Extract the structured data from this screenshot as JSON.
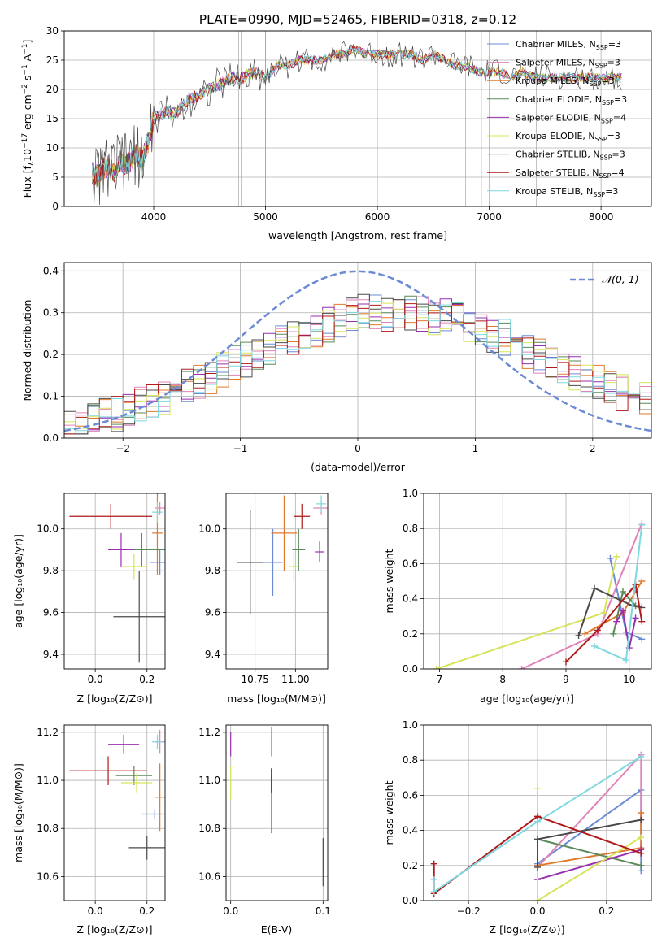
{
  "page": {
    "title": "PLATE=0990, MJD=52465, FIBERID=0318, z=0.12"
  },
  "models": [
    {
      "name": "Chabrier MILES, N$_{SSP}$=3",
      "label_main": "Chabrier MILES, N",
      "label_sub": "SSP",
      "label_end": "=3",
      "color": "#6b8bd6"
    },
    {
      "name": "Salpeter MILES, N$_{SSP}$=3",
      "label_main": "Salpeter MILES, N",
      "label_sub": "SSP",
      "label_end": "=3",
      "color": "#e183b8"
    },
    {
      "name": "Kroupa MILES, N$_{SSP}$=3",
      "label_main": "Kroupa MILES, N",
      "label_sub": "SSP",
      "label_end": "=3",
      "color": "#e0792b"
    },
    {
      "name": "Chabrier ELODIE, N$_{SSP}$=3",
      "label_main": "Chabrier ELODIE, N",
      "label_sub": "SSP",
      "label_end": "=3",
      "color": "#5a8a5a"
    },
    {
      "name": "Salpeter ELODIE, N$_{SSP}$=4",
      "label_main": "Salpeter ELODIE, N",
      "label_sub": "SSP",
      "label_end": "=4",
      "color": "#9a2fb0"
    },
    {
      "name": "Kroupa ELODIE, N$_{SSP}$=3",
      "label_main": "Kroupa ELODIE, N",
      "label_sub": "SSP",
      "label_end": "=3",
      "color": "#d7e45a"
    },
    {
      "name": "Chabrier STELIB, N$_{SSP}$=3",
      "label_main": "Chabrier STELIB, N",
      "label_sub": "SSP",
      "label_end": "=3",
      "color": "#4a4a4a"
    },
    {
      "name": "Salpeter STELIB, N$_{SSP}$=4",
      "label_main": "Salpeter STELIB, N",
      "label_sub": "SSP",
      "label_end": "=4",
      "color": "#b01a1a"
    },
    {
      "name": "Kroupa STELIB, N$_{SSP}$=3",
      "label_main": "Kroupa STELIB, N",
      "label_sub": "SSP",
      "label_end": "=3",
      "color": "#7fd8e0"
    }
  ],
  "chart_data": [
    {
      "id": "spectrum",
      "type": "line",
      "title": "PLATE=0990, MJD=52465, FIBERID=0318, z=0.12",
      "xlabel": "wavelength [Angstrom, rest frame]",
      "ylabel": "Flux [fλ10⁻¹⁷ erg cm⁻² s⁻¹ A⁻¹]",
      "ylabel_main": "Flux [f",
      "ylabel_lam": "λ",
      "ylabel_rest": "10",
      "ylabel_e1": "−17",
      "ylabel_mid": " erg cm",
      "ylabel_e2": "−2",
      "ylabel_mid2": " s",
      "ylabel_e3": "−1",
      "ylabel_end": " A",
      "ylabel_e4": "−1",
      "ylabel_close": "]",
      "xlim": [
        3200,
        8450
      ],
      "ylim": [
        0,
        30
      ],
      "xticks": [
        4000,
        5000,
        6000,
        7000,
        8000
      ],
      "yticks": [
        0,
        5,
        10,
        15,
        20,
        25,
        30
      ],
      "x": [
        3450,
        3500,
        3550,
        3600,
        3650,
        3700,
        3750,
        3800,
        3850,
        3900,
        3950,
        4000,
        4100,
        4200,
        4300,
        4400,
        4500,
        4600,
        4700,
        4800,
        4900,
        5000,
        5100,
        5200,
        5300,
        5400,
        5500,
        5600,
        5700,
        5800,
        5900,
        6000,
        6100,
        6200,
        6300,
        6400,
        6500,
        6600,
        6700,
        6800,
        6900,
        7000,
        7100,
        7200,
        7300,
        7400,
        7500,
        7600,
        7700,
        7800,
        7900,
        8000,
        8100,
        8200
      ],
      "y": [
        6,
        5,
        6.5,
        7,
        6,
        8,
        7,
        8,
        9,
        8,
        11,
        15,
        16,
        16,
        18,
        19,
        20,
        21,
        22,
        22,
        23,
        22,
        24,
        24,
        25,
        25,
        25,
        26,
        26,
        27,
        26,
        26,
        26,
        26,
        26,
        25,
        26,
        25,
        24,
        24,
        23,
        23,
        23,
        22,
        23,
        22,
        22,
        22,
        22,
        22,
        22,
        22,
        22,
        22
      ],
      "grid": true
    },
    {
      "id": "residuals",
      "type": "step",
      "xlabel": "(data-model)/error",
      "ylabel": "Normed distribution",
      "xlim": [
        -2.5,
        2.5
      ],
      "ylim": [
        0,
        0.42
      ],
      "xticks": [
        -2,
        -1,
        0,
        1,
        2
      ],
      "yticks": [
        0.0,
        0.1,
        0.2,
        0.3,
        0.4
      ],
      "legend": "𝒩(0, 1)",
      "legend_placement": "top-right",
      "gaussian": {
        "mu": 0,
        "sigma": 1,
        "color": "#6b8bd6"
      },
      "bin_edges_start": -2.5,
      "bin_width": 0.1,
      "hist_envelope": [
        0.03,
        0.035,
        0.04,
        0.05,
        0.06,
        0.07,
        0.08,
        0.09,
        0.1,
        0.11,
        0.12,
        0.13,
        0.15,
        0.16,
        0.18,
        0.19,
        0.2,
        0.21,
        0.23,
        0.24,
        0.25,
        0.26,
        0.27,
        0.28,
        0.29,
        0.3,
        0.3,
        0.3,
        0.3,
        0.3,
        0.3,
        0.29,
        0.29,
        0.28,
        0.27,
        0.26,
        0.25,
        0.24,
        0.23,
        0.21,
        0.2,
        0.18,
        0.17,
        0.16,
        0.14,
        0.13,
        0.12,
        0.11,
        0.1,
        0.09
      ],
      "grid": true
    },
    {
      "id": "age-vs-Z",
      "type": "errorbar",
      "xlabel": "Z [log₁₀(Z/Z⊙)]",
      "ylabel": "age  [log₁₀(age/yr)]",
      "xlim": [
        -0.12,
        0.27
      ],
      "ylim": [
        9.33,
        10.17
      ],
      "xticks": [
        0.0,
        0.2
      ],
      "yticks": [
        9.4,
        9.6,
        9.8,
        10.0
      ],
      "points": [
        {
          "x": 0.25,
          "y": 9.84,
          "xerr": 0.04,
          "yerr": 0.06
        },
        {
          "x": 0.25,
          "y": 10.1,
          "xerr": 0.02,
          "yerr": 0.03
        },
        {
          "x": 0.24,
          "y": 9.98,
          "xerr": 0.02,
          "yerr": 0.2
        },
        {
          "x": 0.18,
          "y": 9.9,
          "xerr": 0.1,
          "yerr": 0.08
        },
        {
          "x": 0.1,
          "y": 9.9,
          "xerr": 0.05,
          "yerr": 0.08
        },
        {
          "x": 0.15,
          "y": 9.82,
          "xerr": 0.05,
          "yerr": 0.06
        },
        {
          "x": 0.17,
          "y": 9.58,
          "xerr": 0.1,
          "yerr": 0.22
        },
        {
          "x": 0.06,
          "y": 10.06,
          "xerr": 0.16,
          "yerr": 0.06
        },
        {
          "x": 0.24,
          "y": 10.08,
          "xerr": 0.02,
          "yerr": 0.05
        }
      ],
      "grid": true
    },
    {
      "id": "age-vs-mass",
      "type": "errorbar",
      "xlabel": "mass [log₁₀(M/M⊙)]",
      "ylabel": "",
      "xlim": [
        10.57,
        11.2
      ],
      "ylim": [
        9.33,
        10.17
      ],
      "xticks": [
        10.75,
        11.0
      ],
      "yticks": [
        9.4,
        9.6,
        9.8,
        10.0
      ],
      "points": [
        {
          "x": 10.86,
          "y": 9.84,
          "xerr": 0.06,
          "yerr": 0.16
        },
        {
          "x": 11.16,
          "y": 10.1,
          "xerr": 0.05,
          "yerr": 0.03
        },
        {
          "x": 10.93,
          "y": 9.98,
          "xerr": 0.08,
          "yerr": 0.18
        },
        {
          "x": 11.02,
          "y": 9.9,
          "xerr": 0.04,
          "yerr": 0.1
        },
        {
          "x": 11.15,
          "y": 9.89,
          "xerr": 0.03,
          "yerr": 0.05
        },
        {
          "x": 10.99,
          "y": 9.82,
          "xerr": 0.03,
          "yerr": 0.07
        },
        {
          "x": 10.72,
          "y": 9.84,
          "xerr": 0.08,
          "yerr": 0.25
        },
        {
          "x": 11.04,
          "y": 10.06,
          "xerr": 0.05,
          "yerr": 0.06
        },
        {
          "x": 11.16,
          "y": 10.12,
          "xerr": 0.03,
          "yerr": 0.04
        }
      ],
      "grid": true
    },
    {
      "id": "weight-vs-age",
      "type": "line",
      "xlabel": "age  [log₁₀(age/yr)]",
      "ylabel": "mass weight",
      "xlim": [
        6.75,
        10.35
      ],
      "ylim": [
        0,
        1
      ],
      "xticks": [
        7,
        8,
        9,
        10
      ],
      "yticks": [
        0.0,
        0.2,
        0.4,
        0.6,
        0.8,
        1.0
      ],
      "series": [
        {
          "x": [
            9.7,
            9.95,
            10.2
          ],
          "y": [
            0.63,
            0.21,
            0.17
          ]
        },
        {
          "x": [
            8.3,
            9.5,
            10.2
          ],
          "y": [
            0.0,
            0.2,
            0.83
          ]
        },
        {
          "x": [
            9.3,
            9.9,
            10.2
          ],
          "y": [
            0.2,
            0.32,
            0.5
          ]
        },
        {
          "x": [
            9.75,
            9.9,
            10.1
          ],
          "y": [
            0.2,
            0.44,
            0.36
          ]
        },
        {
          "x": [
            9.8,
            9.9,
            10.0,
            10.1
          ],
          "y": [
            0.27,
            0.33,
            0.12,
            0.29
          ]
        },
        {
          "x": [
            6.95,
            9.6,
            9.8
          ],
          "y": [
            0.0,
            0.32,
            0.64
          ]
        },
        {
          "x": [
            9.2,
            9.45,
            10.05,
            10.2
          ],
          "y": [
            0.19,
            0.46,
            0.36,
            0.35
          ]
        },
        {
          "x": [
            9.0,
            9.5,
            10.1,
            10.2
          ],
          "y": [
            0.04,
            0.22,
            0.48,
            0.27
          ]
        },
        {
          "x": [
            9.45,
            9.95,
            10.2
          ],
          "y": [
            0.13,
            0.05,
            0.82
          ]
        }
      ],
      "grid": true
    },
    {
      "id": "mass-vs-Z",
      "type": "errorbar",
      "xlabel": "Z [log₁₀(Z/Z⊙)]",
      "ylabel": "mass [log₁₀(M/M⊙)]",
      "xlim": [
        -0.12,
        0.27
      ],
      "ylim": [
        10.5,
        11.23
      ],
      "xticks": [
        0.0,
        0.2
      ],
      "yticks": [
        10.6,
        10.8,
        11.0,
        11.2
      ],
      "points": [
        {
          "x": 0.23,
          "y": 10.86,
          "xerr": 0.05,
          "yerr": 0.02
        },
        {
          "x": 0.25,
          "y": 11.16,
          "xerr": 0.02,
          "yerr": 0.05
        },
        {
          "x": 0.25,
          "y": 10.93,
          "xerr": 0.02,
          "yerr": 0.14
        },
        {
          "x": 0.15,
          "y": 11.02,
          "xerr": 0.07,
          "yerr": 0.04
        },
        {
          "x": 0.11,
          "y": 11.15,
          "xerr": 0.06,
          "yerr": 0.04
        },
        {
          "x": 0.16,
          "y": 10.99,
          "xerr": 0.06,
          "yerr": 0.04
        },
        {
          "x": 0.2,
          "y": 10.72,
          "xerr": 0.07,
          "yerr": 0.05
        },
        {
          "x": 0.05,
          "y": 11.04,
          "xerr": 0.15,
          "yerr": 0.06
        },
        {
          "x": 0.24,
          "y": 11.16,
          "xerr": 0.02,
          "yerr": 0.03
        }
      ],
      "grid": true
    },
    {
      "id": "mass-vs-EBV",
      "type": "errorbar",
      "xlabel": "E(B-V)",
      "ylabel": "",
      "xlim": [
        -0.005,
        0.105
      ],
      "ylim": [
        10.5,
        11.23
      ],
      "xticks": [
        0.0,
        0.1
      ],
      "yticks": [
        10.6,
        10.8,
        11.0,
        11.2
      ],
      "points": [
        {
          "x": 0.0,
          "y": 11.15,
          "xerr": 0,
          "yerr": 0.05
        },
        {
          "x": 0.0,
          "y": 10.99,
          "xerr": 0,
          "yerr": 0.07
        },
        {
          "x": 0.044,
          "y": 11.16,
          "xerr": 0,
          "yerr": 0.06
        },
        {
          "x": 0.044,
          "y": 10.9,
          "xerr": 0,
          "yerr": 0.12
        },
        {
          "x": 0.044,
          "y": 11.0,
          "xerr": 0,
          "yerr": 0.05
        },
        {
          "x": 0.1,
          "y": 10.66,
          "xerr": 0,
          "yerr": 0.1
        }
      ],
      "grid": true
    },
    {
      "id": "weight-vs-Z",
      "type": "line",
      "xlabel": "Z [log₁₀(Z/Z⊙)]",
      "ylabel": "mass weight",
      "xlim": [
        -0.33,
        0.33
      ],
      "ylim": [
        0,
        1
      ],
      "xticks": [
        -0.2,
        0.0,
        0.2
      ],
      "yticks": [
        0.0,
        0.2,
        0.4,
        0.6,
        0.8,
        1.0
      ],
      "series": [
        {
          "x": [
            0.0,
            0.3,
            0.3
          ],
          "y": [
            0.21,
            0.63,
            0.17
          ]
        },
        {
          "x": [
            0.0,
            0.3,
            0.3
          ],
          "y": [
            0.19,
            0.83,
            0.3
          ]
        },
        {
          "x": [
            0.0,
            0.3,
            0.3
          ],
          "y": [
            0.2,
            0.3,
            0.5
          ]
        },
        {
          "x": [
            0.0,
            0.3
          ],
          "y": [
            0.35,
            0.2
          ]
        },
        {
          "x": [
            0.0,
            0.3,
            0.3
          ],
          "y": [
            0.12,
            0.29,
            0.27
          ]
        },
        {
          "x": [
            0.0,
            0.0,
            0.3
          ],
          "y": [
            0.64,
            0.0,
            0.36
          ]
        },
        {
          "x": [
            0.0,
            0.0,
            0.3
          ],
          "y": [
            0.19,
            0.35,
            0.46
          ]
        },
        {
          "x": [
            -0.3,
            -0.3,
            0.0,
            0.3
          ],
          "y": [
            0.21,
            0.04,
            0.48,
            0.27
          ]
        },
        {
          "x": [
            -0.3,
            -0.3,
            0.0,
            0.3
          ],
          "y": [
            0.12,
            0.05,
            0.45,
            0.82
          ]
        }
      ],
      "grid": true
    }
  ]
}
